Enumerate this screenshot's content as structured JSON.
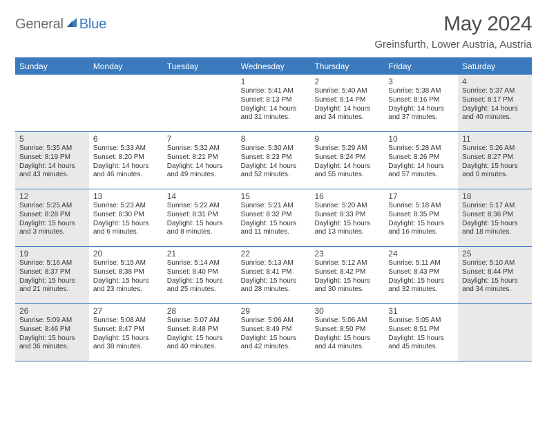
{
  "logo": {
    "text_general": "General",
    "text_blue": "Blue"
  },
  "title": "May 2024",
  "location": "Greinsfurth, Lower Austria, Austria",
  "colors": {
    "accent": "#3a7abd",
    "header_text": "#ffffff",
    "shaded_bg": "#e9e9e9",
    "page_bg": "#ffffff",
    "body_text": "#333333",
    "title_text": "#4d4d4d"
  },
  "fonts": {
    "title_size_pt": 30,
    "location_size_pt": 15,
    "dayheader_size_pt": 12,
    "daynum_size_pt": 12,
    "info_size_pt": 10
  },
  "calendar": {
    "type": "table",
    "day_headers": [
      "Sunday",
      "Monday",
      "Tuesday",
      "Wednesday",
      "Thursday",
      "Friday",
      "Saturday"
    ],
    "weeks": [
      [
        {
          "day": "",
          "shaded": false,
          "sunrise": "",
          "sunset": "",
          "daylight": ""
        },
        {
          "day": "",
          "shaded": false,
          "sunrise": "",
          "sunset": "",
          "daylight": ""
        },
        {
          "day": "",
          "shaded": false,
          "sunrise": "",
          "sunset": "",
          "daylight": ""
        },
        {
          "day": "1",
          "shaded": false,
          "sunrise": "Sunrise: 5:41 AM",
          "sunset": "Sunset: 8:13 PM",
          "daylight": "Daylight: 14 hours and 31 minutes."
        },
        {
          "day": "2",
          "shaded": false,
          "sunrise": "Sunrise: 5:40 AM",
          "sunset": "Sunset: 8:14 PM",
          "daylight": "Daylight: 14 hours and 34 minutes."
        },
        {
          "day": "3",
          "shaded": false,
          "sunrise": "Sunrise: 5:38 AM",
          "sunset": "Sunset: 8:16 PM",
          "daylight": "Daylight: 14 hours and 37 minutes."
        },
        {
          "day": "4",
          "shaded": true,
          "sunrise": "Sunrise: 5:37 AM",
          "sunset": "Sunset: 8:17 PM",
          "daylight": "Daylight: 14 hours and 40 minutes."
        }
      ],
      [
        {
          "day": "5",
          "shaded": true,
          "sunrise": "Sunrise: 5:35 AM",
          "sunset": "Sunset: 8:19 PM",
          "daylight": "Daylight: 14 hours and 43 minutes."
        },
        {
          "day": "6",
          "shaded": false,
          "sunrise": "Sunrise: 5:33 AM",
          "sunset": "Sunset: 8:20 PM",
          "daylight": "Daylight: 14 hours and 46 minutes."
        },
        {
          "day": "7",
          "shaded": false,
          "sunrise": "Sunrise: 5:32 AM",
          "sunset": "Sunset: 8:21 PM",
          "daylight": "Daylight: 14 hours and 49 minutes."
        },
        {
          "day": "8",
          "shaded": false,
          "sunrise": "Sunrise: 5:30 AM",
          "sunset": "Sunset: 8:23 PM",
          "daylight": "Daylight: 14 hours and 52 minutes."
        },
        {
          "day": "9",
          "shaded": false,
          "sunrise": "Sunrise: 5:29 AM",
          "sunset": "Sunset: 8:24 PM",
          "daylight": "Daylight: 14 hours and 55 minutes."
        },
        {
          "day": "10",
          "shaded": false,
          "sunrise": "Sunrise: 5:28 AM",
          "sunset": "Sunset: 8:26 PM",
          "daylight": "Daylight: 14 hours and 57 minutes."
        },
        {
          "day": "11",
          "shaded": true,
          "sunrise": "Sunrise: 5:26 AM",
          "sunset": "Sunset: 8:27 PM",
          "daylight": "Daylight: 15 hours and 0 minutes."
        }
      ],
      [
        {
          "day": "12",
          "shaded": true,
          "sunrise": "Sunrise: 5:25 AM",
          "sunset": "Sunset: 8:28 PM",
          "daylight": "Daylight: 15 hours and 3 minutes."
        },
        {
          "day": "13",
          "shaded": false,
          "sunrise": "Sunrise: 5:23 AM",
          "sunset": "Sunset: 8:30 PM",
          "daylight": "Daylight: 15 hours and 6 minutes."
        },
        {
          "day": "14",
          "shaded": false,
          "sunrise": "Sunrise: 5:22 AM",
          "sunset": "Sunset: 8:31 PM",
          "daylight": "Daylight: 15 hours and 8 minutes."
        },
        {
          "day": "15",
          "shaded": false,
          "sunrise": "Sunrise: 5:21 AM",
          "sunset": "Sunset: 8:32 PM",
          "daylight": "Daylight: 15 hours and 11 minutes."
        },
        {
          "day": "16",
          "shaded": false,
          "sunrise": "Sunrise: 5:20 AM",
          "sunset": "Sunset: 8:33 PM",
          "daylight": "Daylight: 15 hours and 13 minutes."
        },
        {
          "day": "17",
          "shaded": false,
          "sunrise": "Sunrise: 5:18 AM",
          "sunset": "Sunset: 8:35 PM",
          "daylight": "Daylight: 15 hours and 16 minutes."
        },
        {
          "day": "18",
          "shaded": true,
          "sunrise": "Sunrise: 5:17 AM",
          "sunset": "Sunset: 8:36 PM",
          "daylight": "Daylight: 15 hours and 18 minutes."
        }
      ],
      [
        {
          "day": "19",
          "shaded": true,
          "sunrise": "Sunrise: 5:16 AM",
          "sunset": "Sunset: 8:37 PM",
          "daylight": "Daylight: 15 hours and 21 minutes."
        },
        {
          "day": "20",
          "shaded": false,
          "sunrise": "Sunrise: 5:15 AM",
          "sunset": "Sunset: 8:38 PM",
          "daylight": "Daylight: 15 hours and 23 minutes."
        },
        {
          "day": "21",
          "shaded": false,
          "sunrise": "Sunrise: 5:14 AM",
          "sunset": "Sunset: 8:40 PM",
          "daylight": "Daylight: 15 hours and 25 minutes."
        },
        {
          "day": "22",
          "shaded": false,
          "sunrise": "Sunrise: 5:13 AM",
          "sunset": "Sunset: 8:41 PM",
          "daylight": "Daylight: 15 hours and 28 minutes."
        },
        {
          "day": "23",
          "shaded": false,
          "sunrise": "Sunrise: 5:12 AM",
          "sunset": "Sunset: 8:42 PM",
          "daylight": "Daylight: 15 hours and 30 minutes."
        },
        {
          "day": "24",
          "shaded": false,
          "sunrise": "Sunrise: 5:11 AM",
          "sunset": "Sunset: 8:43 PM",
          "daylight": "Daylight: 15 hours and 32 minutes."
        },
        {
          "day": "25",
          "shaded": true,
          "sunrise": "Sunrise: 5:10 AM",
          "sunset": "Sunset: 8:44 PM",
          "daylight": "Daylight: 15 hours and 34 minutes."
        }
      ],
      [
        {
          "day": "26",
          "shaded": true,
          "sunrise": "Sunrise: 5:09 AM",
          "sunset": "Sunset: 8:46 PM",
          "daylight": "Daylight: 15 hours and 36 minutes."
        },
        {
          "day": "27",
          "shaded": false,
          "sunrise": "Sunrise: 5:08 AM",
          "sunset": "Sunset: 8:47 PM",
          "daylight": "Daylight: 15 hours and 38 minutes."
        },
        {
          "day": "28",
          "shaded": false,
          "sunrise": "Sunrise: 5:07 AM",
          "sunset": "Sunset: 8:48 PM",
          "daylight": "Daylight: 15 hours and 40 minutes."
        },
        {
          "day": "29",
          "shaded": false,
          "sunrise": "Sunrise: 5:06 AM",
          "sunset": "Sunset: 8:49 PM",
          "daylight": "Daylight: 15 hours and 42 minutes."
        },
        {
          "day": "30",
          "shaded": false,
          "sunrise": "Sunrise: 5:06 AM",
          "sunset": "Sunset: 8:50 PM",
          "daylight": "Daylight: 15 hours and 44 minutes."
        },
        {
          "day": "31",
          "shaded": false,
          "sunrise": "Sunrise: 5:05 AM",
          "sunset": "Sunset: 8:51 PM",
          "daylight": "Daylight: 15 hours and 45 minutes."
        },
        {
          "day": "",
          "shaded": true,
          "sunrise": "",
          "sunset": "",
          "daylight": ""
        }
      ]
    ]
  }
}
